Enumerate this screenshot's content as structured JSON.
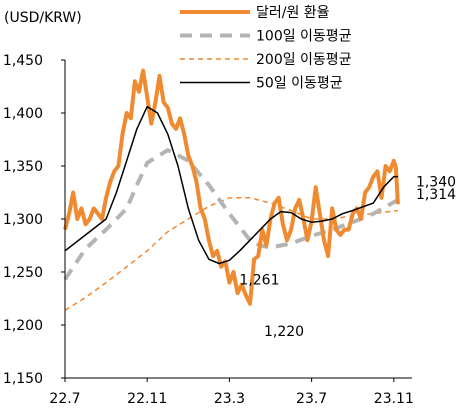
{
  "chart_data": {
    "type": "line",
    "unit_label": "(USD/KRW)",
    "x_ticks": [
      "22.7",
      "22.11",
      "23.3",
      "23.7",
      "23.11"
    ],
    "y_ticks": [
      "1,150",
      "1,200",
      "1,250",
      "1,300",
      "1,350",
      "1,400",
      "1,450"
    ],
    "ylim": [
      1150,
      1450
    ],
    "xlim": [
      0,
      16.3
    ],
    "grid": false,
    "legend_position": "top-right",
    "series": [
      {
        "name": "달러/원 환율",
        "color": "#f08a30",
        "dash": "solid",
        "width": 4,
        "x": [
          0,
          0.2,
          0.4,
          0.6,
          0.8,
          1.0,
          1.2,
          1.4,
          1.6,
          1.8,
          2.0,
          2.2,
          2.4,
          2.6,
          2.8,
          3.0,
          3.2,
          3.4,
          3.6,
          3.8,
          4.0,
          4.2,
          4.4,
          4.6,
          4.8,
          5.0,
          5.2,
          5.4,
          5.6,
          5.8,
          6.0,
          6.2,
          6.4,
          6.6,
          6.8,
          7.0,
          7.2,
          7.4,
          7.6,
          7.8,
          8.0,
          8.2,
          8.4,
          8.6,
          8.8,
          9.0,
          9.2,
          9.4,
          9.6,
          9.8,
          10.0,
          10.2,
          10.4,
          10.6,
          10.8,
          11.0,
          11.2,
          11.4,
          11.6,
          11.8,
          12.0,
          12.2,
          12.4,
          12.6,
          12.8,
          13.0,
          13.2,
          13.4,
          13.6,
          13.8,
          14.0,
          14.2,
          14.4,
          14.6,
          14.8,
          15.0,
          15.2,
          15.4,
          15.6,
          15.8,
          16.0,
          16.1,
          16.2
        ],
        "values": [
          1290,
          1305,
          1325,
          1300,
          1310,
          1295,
          1300,
          1310,
          1305,
          1300,
          1320,
          1335,
          1345,
          1350,
          1380,
          1400,
          1395,
          1430,
          1420,
          1440,
          1415,
          1390,
          1410,
          1435,
          1410,
          1405,
          1390,
          1385,
          1395,
          1380,
          1360,
          1350,
          1335,
          1310,
          1300,
          1280,
          1265,
          1270,
          1255,
          1260,
          1240,
          1250,
          1230,
          1238,
          1228,
          1220,
          1262,
          1265,
          1290,
          1275,
          1300,
          1315,
          1320,
          1295,
          1280,
          1290,
          1310,
          1318,
          1300,
          1280,
          1298,
          1330,
          1305,
          1280,
          1265,
          1310,
          1290,
          1285,
          1290,
          1290,
          1305,
          1310,
          1300,
          1325,
          1330,
          1340,
          1345,
          1320,
          1350,
          1345,
          1355,
          1348,
          1314
        ]
      },
      {
        "name": "100일 이동평균",
        "color": "#b4b4b4",
        "dash": "long-dash",
        "width": 4,
        "x": [
          0,
          1,
          2,
          3,
          3.5,
          4,
          5,
          6,
          7,
          8,
          9,
          9.5,
          10,
          11,
          12,
          13,
          14,
          15,
          16.2
        ],
        "values": [
          1243,
          1272,
          1290,
          1310,
          1332,
          1353,
          1365,
          1355,
          1332,
          1305,
          1280,
          1275,
          1273,
          1277,
          1284,
          1290,
          1297,
          1305,
          1318
        ]
      },
      {
        "name": "200일 이동평균",
        "color": "#f08a30",
        "dash": "short-dash",
        "width": 1.5,
        "x": [
          0,
          1,
          2,
          3,
          4,
          5,
          6,
          7,
          8,
          9,
          10,
          11,
          12,
          13,
          14,
          15,
          16.2
        ],
        "values": [
          1214,
          1226,
          1240,
          1255,
          1270,
          1288,
          1300,
          1312,
          1320,
          1320,
          1315,
          1308,
          1300,
          1300,
          1303,
          1305,
          1308
        ]
      },
      {
        "name": "50일 이동평균",
        "color": "#000000",
        "dash": "solid",
        "width": 1.5,
        "x": [
          0,
          1,
          2,
          2.5,
          3,
          3.5,
          4,
          4.5,
          5,
          5.5,
          6,
          6.5,
          7,
          7.5,
          8,
          8.5,
          9,
          10,
          10.5,
          11,
          11.5,
          12,
          12.5,
          13,
          13.5,
          14,
          15,
          15.5,
          16,
          16.2
        ],
        "values": [
          1270,
          1285,
          1300,
          1325,
          1355,
          1385,
          1406,
          1400,
          1380,
          1350,
          1310,
          1280,
          1262,
          1258,
          1261,
          1270,
          1280,
          1300,
          1307,
          1306,
          1300,
          1297,
          1298,
          1300,
          1305,
          1308,
          1315,
          1330,
          1340,
          1340
        ]
      }
    ],
    "annotations": [
      {
        "text": "1,340",
        "series": 3,
        "x": 16.2,
        "y": 1340
      },
      {
        "text": "1,314",
        "series": 0,
        "x": 16.2,
        "y": 1314
      },
      {
        "text": "1,261",
        "series": 3,
        "x": 8.0,
        "y": 1261
      },
      {
        "text": "1,220",
        "series": 0,
        "x": 9.0,
        "y": 1220
      }
    ]
  }
}
